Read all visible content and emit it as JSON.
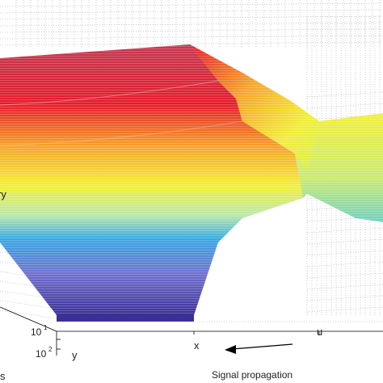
{
  "chart_data": {
    "type": "surface",
    "axes": {
      "left_axis_label_fragment": "ry",
      "depth_ticks": [
        "10",
        "10"
      ],
      "depth_tick_exponents": [
        "1",
        "2"
      ],
      "depth_axis_letter": "y",
      "front_axis_ticks": [
        "x",
        "u"
      ],
      "front_axis_label": "Signal propagation",
      "corner_label_fragment": "s"
    },
    "colormap": [
      "#3a2f95",
      "#3aa6e6",
      "#8fd8ec",
      "#f2ee3a",
      "#f5a62a",
      "#e51b2a",
      "#c2384f"
    ],
    "grid": true,
    "arrow_direction": "left"
  }
}
